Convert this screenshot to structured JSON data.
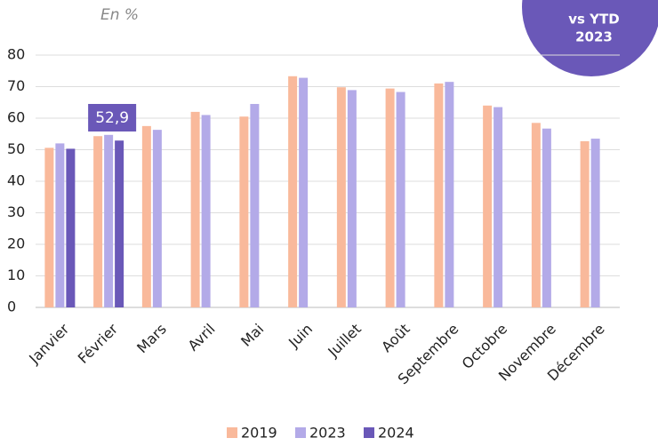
{
  "chart_data": {
    "type": "bar",
    "subtitle": "En %",
    "badge": [
      "vs YTD",
      "2023"
    ],
    "annotation": "52,9",
    "categories": [
      "Janvier",
      "Février",
      "Mars",
      "Avril",
      "Mai",
      "Juin",
      "Juillet",
      "Août",
      "Septembre",
      "Octobre",
      "Novembre",
      "Décembre"
    ],
    "series": [
      {
        "name": "2019",
        "color": "#f9b99b",
        "values": [
          50.6,
          54.3,
          57.5,
          62,
          60.5,
          73.3,
          69.8,
          69.4,
          71,
          64,
          58.5,
          52.7
        ]
      },
      {
        "name": "2023",
        "color": "#b3aae8",
        "values": [
          52,
          54.7,
          56.3,
          61,
          64.5,
          72.8,
          68.9,
          68.3,
          71.5,
          63.5,
          56.7,
          53.5
        ]
      },
      {
        "name": "2024",
        "color": "#6a58b8",
        "values": [
          50.3,
          52.9,
          null,
          null,
          null,
          null,
          null,
          null,
          null,
          null,
          null,
          null
        ]
      }
    ],
    "ylim": [
      0,
      80
    ],
    "yticks": [
      0,
      10,
      20,
      30,
      40,
      50,
      60,
      70,
      80
    ],
    "grid": true
  }
}
